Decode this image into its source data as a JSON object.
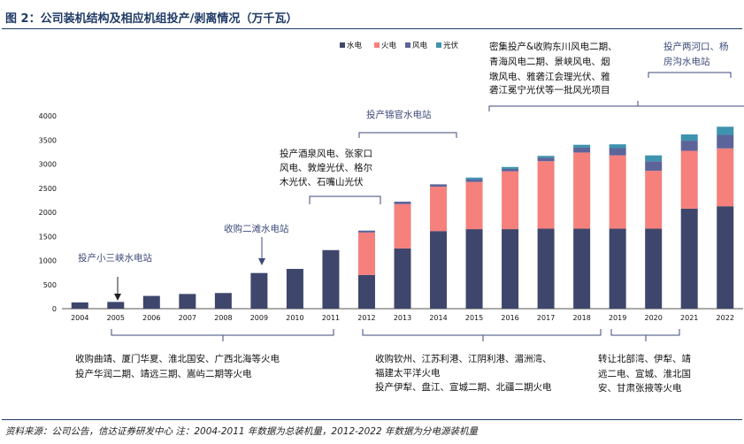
{
  "title": "图 2：公司装机结构及相应机组投产/剥离情况（万千瓦）",
  "source": "资料来源：公司公告，信达证券研发中心 注：2004-2011 年数据为总装机量，2012-2022 年数据为分电源装机量",
  "colors": {
    "hydro": "#3f466b",
    "thermal": "#f5807c",
    "wind": "#5d6499",
    "solar": "#3e93ae",
    "annotation_blue": "#3d4a7a",
    "axis": "#555555"
  },
  "chart_data": {
    "type": "bar",
    "stacked": true,
    "categories": [
      "2004",
      "2005",
      "2006",
      "2007",
      "2008",
      "2009",
      "2010",
      "2011",
      "2012",
      "2013",
      "2014",
      "2015",
      "2016",
      "2017",
      "2018",
      "2019",
      "2020",
      "2021",
      "2022"
    ],
    "series": [
      {
        "name": "水电",
        "values": [
          130,
          140,
          265,
          305,
          325,
          740,
          825,
          1215,
          700,
          1250,
          1610,
          1650,
          1650,
          1660,
          1660,
          1660,
          1660,
          2075,
          2125
        ]
      },
      {
        "name": "火电",
        "values": [
          0,
          0,
          0,
          0,
          0,
          0,
          0,
          0,
          880,
          920,
          920,
          980,
          1200,
          1400,
          1580,
          1520,
          1200,
          1200,
          1200
        ]
      },
      {
        "name": "风电",
        "values": [
          0,
          0,
          0,
          0,
          0,
          0,
          0,
          0,
          40,
          50,
          50,
          50,
          50,
          70,
          100,
          150,
          200,
          210,
          280
        ]
      },
      {
        "name": "光伏",
        "values": [
          0,
          0,
          0,
          0,
          0,
          0,
          0,
          0,
          0,
          0,
          0,
          40,
          40,
          40,
          60,
          80,
          120,
          130,
          170
        ]
      }
    ],
    "ylim": [
      0,
      4000
    ],
    "yticks": [
      0,
      500,
      1000,
      1500,
      2000,
      2500,
      3000,
      3500,
      4000
    ],
    "grid": false,
    "legend": "top-right"
  },
  "annotations": {
    "a2005": "投产小三峡水电站",
    "a2009": "收购二滩水电站",
    "a2012_l1": "投产酒泉风电、张家口",
    "a2012_l2": "风电、敦煌光伏、格尔",
    "a2012_l3": "木光伏、石嘴山光伏",
    "a2013": "投产锦官水电站",
    "a2017_l1": "密集投产&收购东川风电二期、",
    "a2017_l2": "青海风电二期、景峡风电、烟",
    "a2017_l3": "墩风电、雅砻江会理光伏、雅",
    "a2017_l4": "砻江冕宁光伏等一批风光项目",
    "a2021_l1": "投产两河口、杨",
    "a2021_l2": "房沟水电站",
    "b1_l1": "收购曲靖、厦门华夏、淮北国安、广西北海等火电",
    "b1_l2": "投产华润二期、靖远三期、嵩屿二期等火电",
    "b2_l1": "收购钦州、江苏利港、江阴利港、湄洲湾、",
    "b2_l2": "福建太平洋火电",
    "b2_l3": "投产伊犁、盘江、宣城二期、北疆二期火电",
    "b3_l1": "转让北部湾、伊犁、靖",
    "b3_l2": "远二电、宣城、淮北国",
    "b3_l3": "安、甘肃张掖等火电"
  }
}
